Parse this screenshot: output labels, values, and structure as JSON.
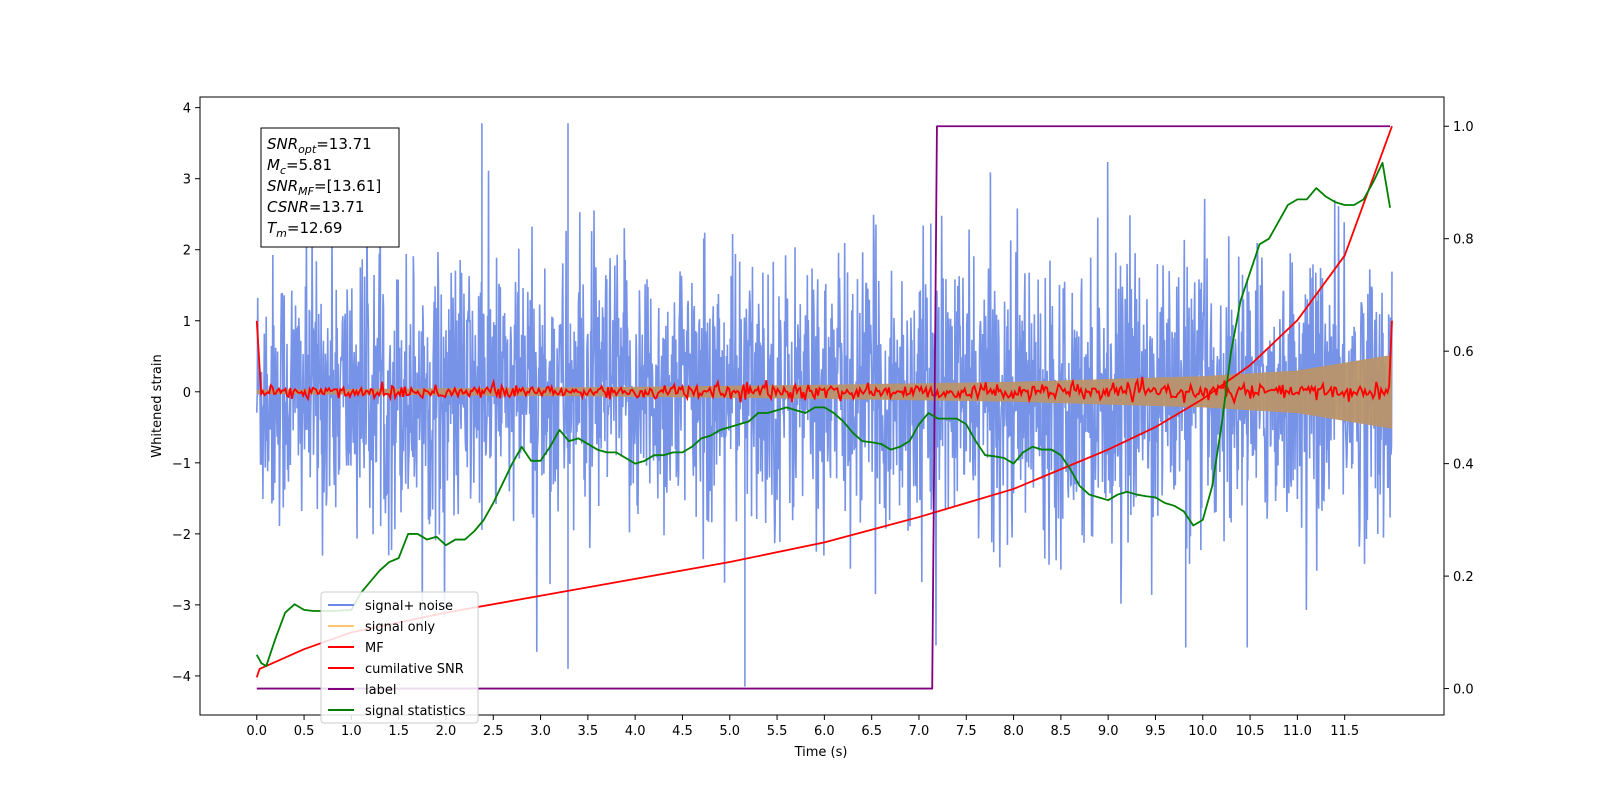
{
  "chart_data": {
    "type": "line",
    "xlabel": "Time (s)",
    "ylabel": "Whitened strain",
    "xlim": [
      -0.6,
      12.55
    ],
    "ylim": [
      -4.55,
      4.15
    ],
    "ylim_right": [
      -0.047,
      1.052
    ],
    "x_ticks": [
      "0.0",
      "0.5",
      "1.0",
      "1.5",
      "2.0",
      "2.5",
      "3.0",
      "3.5",
      "4.0",
      "4.5",
      "5.0",
      "5.5",
      "6.0",
      "6.5",
      "7.0",
      "7.5",
      "8.0",
      "8.5",
      "9.0",
      "9.5",
      "10.0",
      "10.5",
      "11.0",
      "11.5"
    ],
    "y_ticks": [
      "4",
      "3",
      "2",
      "1",
      "0",
      "−1",
      "−2",
      "−3",
      "−4"
    ],
    "y_right_ticks": [
      "1.0",
      "0.8",
      "0.6",
      "0.4",
      "0.2",
      "0.0"
    ],
    "grid": false,
    "legend_position": "lower-left",
    "series": [
      {
        "name": "signal+ noise",
        "color": "#6b8ae5",
        "axis": "left",
        "style": "dense noise band",
        "x": [
          0.0,
          12.0
        ],
        "envelope_max": 3.9,
        "envelope_min": -4.15
      },
      {
        "name": "signal only",
        "color": "#ffc66e",
        "axis": "left",
        "style": "chirp envelope",
        "x": [
          0.0,
          2.0,
          4.0,
          6.0,
          8.0,
          10.0,
          11.0,
          12.0
        ],
        "amplitude": [
          0.03,
          0.05,
          0.07,
          0.1,
          0.14,
          0.22,
          0.3,
          0.52
        ]
      },
      {
        "name": "MF",
        "color": "#ff0000",
        "axis": "left",
        "style": "noisy line around zero",
        "x": [
          0.0,
          0.03,
          0.1,
          12.0
        ],
        "y_start": 1.0,
        "y_end": 1.0
      },
      {
        "name": "cumilative SNR",
        "color": "#ff0000",
        "axis": "right",
        "x": [
          0.0,
          0.03,
          0.5,
          1.0,
          2.0,
          3.0,
          4.0,
          5.0,
          6.0,
          7.0,
          7.5,
          8.0,
          8.5,
          9.0,
          9.5,
          10.0,
          10.5,
          11.0,
          11.5,
          12.0
        ],
        "y": [
          0.02,
          0.035,
          0.07,
          0.1,
          0.135,
          0.165,
          0.195,
          0.225,
          0.26,
          0.305,
          0.33,
          0.355,
          0.39,
          0.425,
          0.465,
          0.515,
          0.575,
          0.655,
          0.77,
          1.0
        ]
      },
      {
        "name": "label",
        "color": "#800080",
        "axis": "right",
        "x": [
          0.0,
          7.14,
          7.19,
          11.98
        ],
        "y": [
          0.0,
          0.0,
          1.0,
          1.0
        ]
      },
      {
        "name": "signal statistics",
        "color": "#008000",
        "axis": "right",
        "x": [
          0.0,
          0.05,
          0.1,
          0.2,
          0.3,
          0.4,
          0.5,
          0.6,
          0.8,
          1.0,
          1.1,
          1.2,
          1.3,
          1.4,
          1.5,
          1.6,
          1.7,
          1.8,
          1.9,
          2.0,
          2.1,
          2.2,
          2.3,
          2.4,
          2.5,
          2.6,
          2.7,
          2.8,
          2.9,
          3.0,
          3.1,
          3.2,
          3.3,
          3.4,
          3.5,
          3.6,
          3.7,
          3.8,
          3.9,
          4.0,
          4.1,
          4.2,
          4.3,
          4.4,
          4.5,
          4.6,
          4.7,
          4.8,
          4.9,
          5.0,
          5.1,
          5.2,
          5.3,
          5.4,
          5.5,
          5.6,
          5.7,
          5.8,
          5.9,
          6.0,
          6.1,
          6.2,
          6.3,
          6.4,
          6.5,
          6.6,
          6.7,
          6.8,
          6.9,
          7.0,
          7.1,
          7.2,
          7.3,
          7.4,
          7.5,
          7.6,
          7.7,
          7.8,
          7.9,
          8.0,
          8.1,
          8.2,
          8.3,
          8.4,
          8.5,
          8.6,
          8.7,
          8.8,
          8.9,
          9.0,
          9.1,
          9.2,
          9.3,
          9.4,
          9.5,
          9.6,
          9.7,
          9.8,
          9.9,
          10.0,
          10.1,
          10.2,
          10.3,
          10.4,
          10.5,
          10.6,
          10.7,
          10.8,
          10.9,
          11.0,
          11.1,
          11.2,
          11.3,
          11.4,
          11.5,
          11.6,
          11.7,
          11.8,
          11.9,
          11.98
        ],
        "y": [
          0.06,
          0.045,
          0.04,
          0.09,
          0.135,
          0.15,
          0.14,
          0.138,
          0.138,
          0.14,
          0.17,
          0.19,
          0.21,
          0.225,
          0.232,
          0.275,
          0.275,
          0.265,
          0.27,
          0.255,
          0.265,
          0.265,
          0.28,
          0.3,
          0.33,
          0.365,
          0.4,
          0.43,
          0.405,
          0.405,
          0.43,
          0.46,
          0.44,
          0.445,
          0.435,
          0.425,
          0.42,
          0.42,
          0.41,
          0.4,
          0.405,
          0.415,
          0.415,
          0.42,
          0.42,
          0.43,
          0.445,
          0.45,
          0.46,
          0.465,
          0.47,
          0.475,
          0.49,
          0.49,
          0.495,
          0.5,
          0.495,
          0.49,
          0.5,
          0.5,
          0.49,
          0.475,
          0.455,
          0.44,
          0.438,
          0.435,
          0.425,
          0.43,
          0.44,
          0.47,
          0.49,
          0.48,
          0.48,
          0.48,
          0.47,
          0.44,
          0.415,
          0.413,
          0.41,
          0.4,
          0.42,
          0.43,
          0.425,
          0.425,
          0.415,
          0.39,
          0.36,
          0.345,
          0.34,
          0.335,
          0.345,
          0.35,
          0.345,
          0.342,
          0.34,
          0.33,
          0.325,
          0.315,
          0.29,
          0.3,
          0.36,
          0.47,
          0.6,
          0.69,
          0.74,
          0.79,
          0.8,
          0.83,
          0.86,
          0.87,
          0.87,
          0.89,
          0.875,
          0.865,
          0.86,
          0.86,
          0.87,
          0.9,
          0.935,
          0.855
        ]
      }
    ],
    "annotations": {
      "snr_opt": "=13.71",
      "mc": "=5.81",
      "snr_mf": "=[13.61]",
      "csnr": "=13.71",
      "tm": "=12.69"
    }
  }
}
